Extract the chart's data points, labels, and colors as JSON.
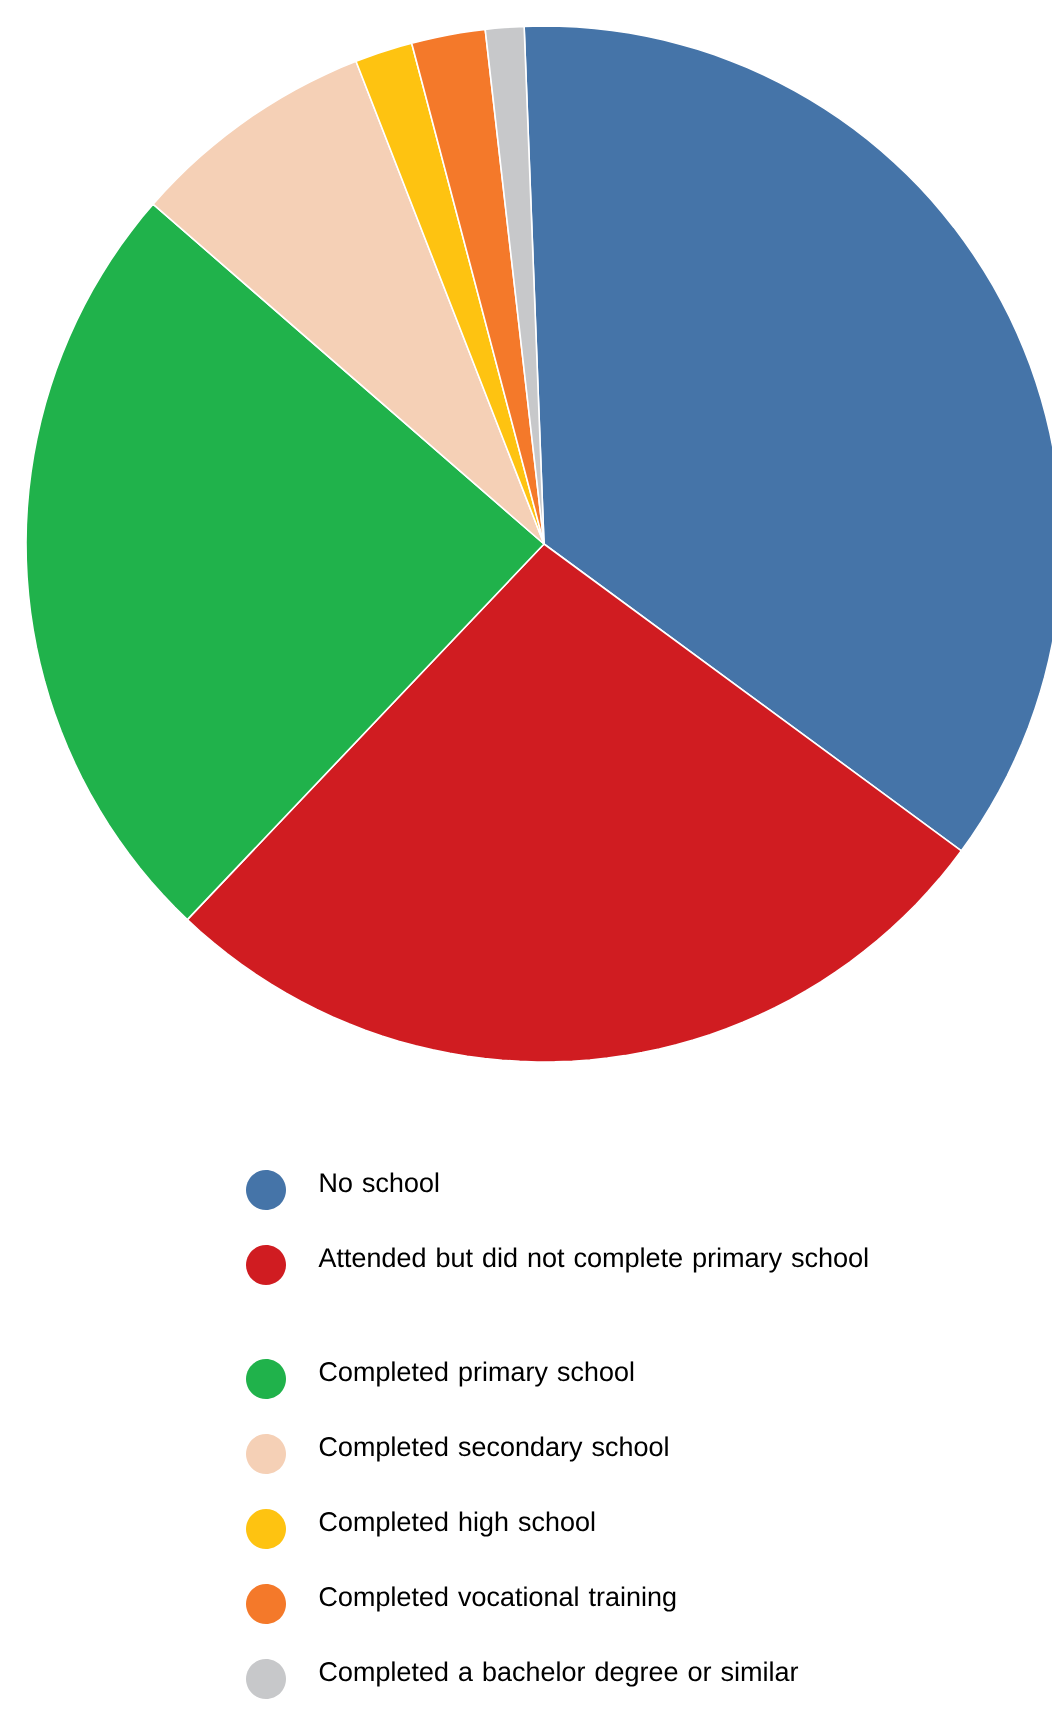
{
  "chart_data": {
    "type": "pie",
    "legend": "bottom",
    "categories": [
      "No school",
      "Attended but did not complete primary school",
      "Completed primary school",
      "Completed secondary school",
      "Completed high school",
      "Completed vocational training",
      "Completed a bachelor degree or similar"
    ],
    "values": [
      35.7,
      27.0,
      24.3,
      7.7,
      1.8,
      2.3,
      1.2
    ],
    "colors": [
      "#4574a8",
      "#d01c21",
      "#20b24b",
      "#f5d0b6",
      "#fec311",
      "#f4792a",
      "#c7c8ca"
    ]
  }
}
